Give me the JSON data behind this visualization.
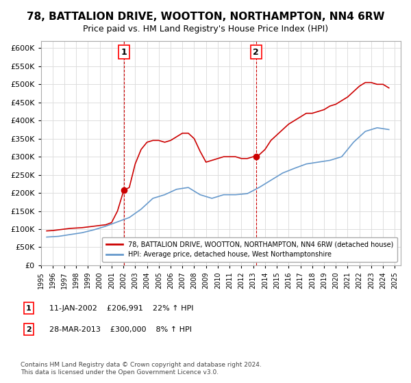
{
  "title": "78, BATTALION DRIVE, WOOTTON, NORTHAMPTON, NN4 6RW",
  "subtitle": "Price paid vs. HM Land Registry's House Price Index (HPI)",
  "ylabel_ticks": [
    0,
    50000,
    100000,
    150000,
    200000,
    250000,
    300000,
    350000,
    400000,
    450000,
    500000,
    550000,
    600000
  ],
  "ylim": [
    0,
    620000
  ],
  "xlim_start": 1995.0,
  "xlim_end": 2025.5,
  "sale1_year": 2002.03,
  "sale1_price": 206991,
  "sale2_year": 2013.24,
  "sale2_price": 300000,
  "legend_entry1": "78, BATTALION DRIVE, WOOTTON, NORTHAMPTON, NN4 6RW (detached house)",
  "legend_entry2": "HPI: Average price, detached house, West Northamptonshire",
  "annotation1_label": "1",
  "annotation1_text": "11-JAN-2002    £206,991    22% ↑ HPI",
  "annotation2_label": "2",
  "annotation2_text": "28-MAR-2013    £300,000    8% ↑ HPI",
  "footer": "Contains HM Land Registry data © Crown copyright and database right 2024.\nThis data is licensed under the Open Government Licence v3.0.",
  "red_color": "#cc0000",
  "blue_color": "#6699cc",
  "background_color": "#ffffff",
  "grid_color": "#dddddd",
  "title_fontsize": 11,
  "subtitle_fontsize": 9,
  "hpi_years": [
    1995.5,
    1996.5,
    1997.5,
    1998.5,
    1999.5,
    2000.5,
    2001.5,
    2002.5,
    2003.5,
    2004.5,
    2005.5,
    2006.5,
    2007.5,
    2008.5,
    2009.5,
    2010.5,
    2011.5,
    2012.5,
    2013.5,
    2014.5,
    2015.5,
    2016.5,
    2017.5,
    2018.5,
    2019.5,
    2020.5,
    2021.5,
    2022.5,
    2023.5,
    2024.5
  ],
  "hpi_values": [
    78000,
    80000,
    85000,
    90000,
    98000,
    108000,
    120000,
    132000,
    155000,
    185000,
    195000,
    210000,
    215000,
    195000,
    185000,
    195000,
    195000,
    198000,
    215000,
    235000,
    255000,
    268000,
    280000,
    285000,
    290000,
    300000,
    340000,
    370000,
    380000,
    375000
  ],
  "red_years": [
    1995.5,
    1996.0,
    1996.5,
    1997.0,
    1997.5,
    1998.0,
    1998.5,
    1999.0,
    1999.5,
    2000.0,
    2000.5,
    2001.0,
    2001.5,
    2002.03,
    2002.5,
    2003.0,
    2003.5,
    2004.0,
    2004.5,
    2005.0,
    2005.5,
    2006.0,
    2006.5,
    2007.0,
    2007.5,
    2008.0,
    2008.5,
    2009.0,
    2009.5,
    2010.0,
    2010.5,
    2011.0,
    2011.5,
    2012.0,
    2012.5,
    2013.0,
    2013.24,
    2013.5,
    2014.0,
    2014.5,
    2015.0,
    2015.5,
    2016.0,
    2016.5,
    2017.0,
    2017.5,
    2018.0,
    2018.5,
    2019.0,
    2019.5,
    2020.0,
    2020.5,
    2021.0,
    2021.5,
    2022.0,
    2022.5,
    2023.0,
    2023.5,
    2024.0,
    2024.5
  ],
  "red_values": [
    95000,
    96000,
    98000,
    100000,
    102000,
    103000,
    104000,
    106000,
    108000,
    110000,
    112000,
    118000,
    150000,
    206991,
    215000,
    280000,
    320000,
    340000,
    345000,
    345000,
    340000,
    345000,
    355000,
    365000,
    365000,
    350000,
    315000,
    285000,
    290000,
    295000,
    300000,
    300000,
    300000,
    295000,
    295000,
    300000,
    300000,
    305000,
    320000,
    345000,
    360000,
    375000,
    390000,
    400000,
    410000,
    420000,
    420000,
    425000,
    430000,
    440000,
    445000,
    455000,
    465000,
    480000,
    495000,
    505000,
    505000,
    500000,
    500000,
    490000
  ]
}
